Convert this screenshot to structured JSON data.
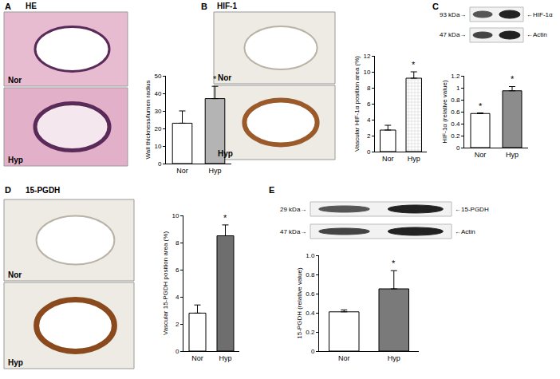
{
  "chart_data": [
    {
      "type": "bar",
      "categories": [
        "Nor",
        "Hyp"
      ],
      "values": [
        23,
        37
      ],
      "errors": [
        7,
        7
      ],
      "colors": [
        "#ffffff",
        "#b4b4b4"
      ],
      "y_label": "Wall thickness/lumen radius",
      "ylim": [
        0,
        50
      ],
      "yticks": [
        0,
        10,
        20,
        30,
        40,
        50
      ],
      "significance": [
        null,
        "*"
      ]
    },
    {
      "type": "bar",
      "categories": [
        "Nor",
        "Hyp"
      ],
      "values": [
        2.7,
        9.2
      ],
      "errors": [
        0.6,
        0.8
      ],
      "colors": [
        "#ffffff",
        "#d0d0d0"
      ],
      "marker": "hatched",
      "y_label": "Vascular HIF-1α position area (%)",
      "ylim": [
        0,
        12
      ],
      "yticks": [
        0,
        2,
        4,
        6,
        8,
        10,
        12
      ],
      "significance": [
        null,
        "*"
      ]
    },
    {
      "type": "bar",
      "categories": [
        "Nor",
        "Hyp"
      ],
      "values": [
        0.57,
        0.95
      ],
      "errors": [
        0.01,
        0.07
      ],
      "colors": [
        "#ffffff",
        "#8c8c8c"
      ],
      "y_label": "HIF-1α (relative value)",
      "ylim": [
        0,
        1.2
      ],
      "yticks": [
        0,
        0.2,
        0.4,
        0.6,
        0.8,
        1,
        1.2
      ],
      "significance": [
        "*",
        "*"
      ]
    },
    {
      "type": "bar",
      "categories": [
        "Nor",
        "Hyp"
      ],
      "values": [
        2.8,
        8.5
      ],
      "errors": [
        0.6,
        0.8
      ],
      "colors": [
        "#ffffff",
        "#6e6e6e"
      ],
      "y_label": "Vascular 15-PGDH position area (%)",
      "ylim": [
        0,
        10
      ],
      "yticks": [
        0,
        2,
        4,
        6,
        8,
        10
      ],
      "significance": [
        null,
        "*"
      ]
    },
    {
      "type": "bar",
      "categories": [
        "Nor",
        "Hyp"
      ],
      "values": [
        0.41,
        0.65
      ],
      "errors": [
        0.02,
        0.19
      ],
      "colors": [
        "#ffffff",
        "#7a7a7a"
      ],
      "y_label": "15-PGDH (relative value)",
      "ylim": [
        0,
        1
      ],
      "yticks": [
        0,
        0.2,
        0.4,
        0.6,
        0.8,
        {
          "value": 1,
          "label": "1.0"
        }
      ],
      "significance": [
        null,
        "*"
      ]
    }
  ],
  "panels": [
    {
      "letter": "A",
      "title": "HE",
      "images": [
        "Nor",
        "Hyp"
      ]
    },
    {
      "letter": "B",
      "title": "HIF-1",
      "images": [
        "Nor",
        "Hyp"
      ]
    },
    {
      "letter": "C",
      "blot": [
        {
          "size": "93 kDa→",
          "protein": "←HIF-1α"
        },
        {
          "size": "47 kDa→",
          "protein": "←Actin"
        }
      ]
    },
    {
      "letter": "D",
      "title": "15-PGDH",
      "images": [
        "Nor",
        "Hyp"
      ]
    },
    {
      "letter": "E",
      "blot": [
        {
          "size": "29 kDa→",
          "protein": "←15-PGDH"
        },
        {
          "size": "47 kDa→",
          "protein": "←Actin"
        }
      ]
    }
  ]
}
